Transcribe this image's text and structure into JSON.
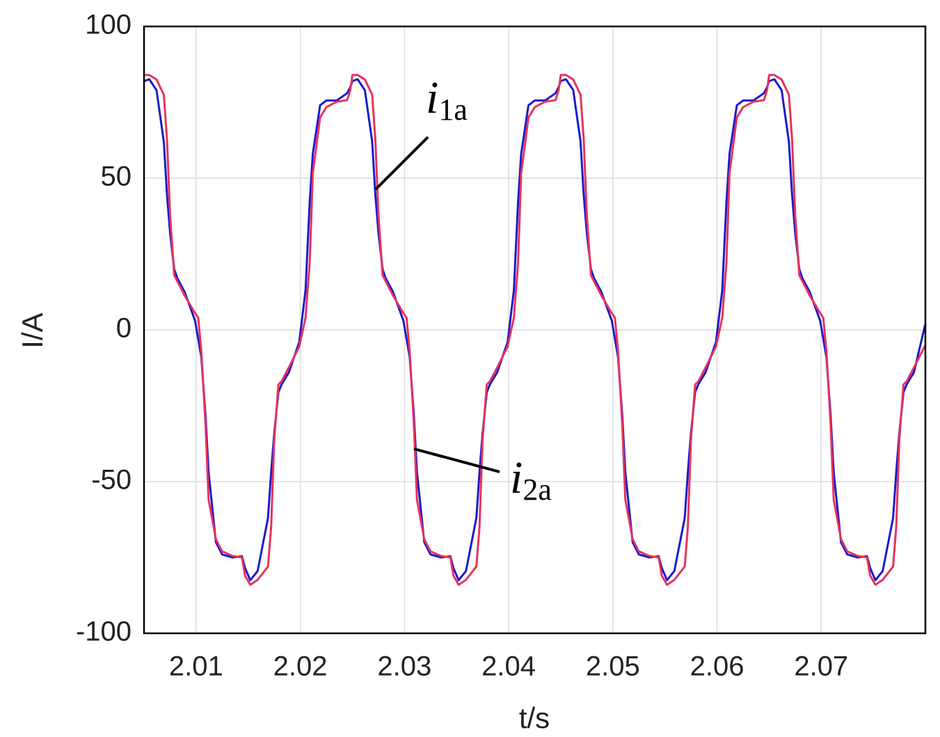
{
  "chart_data": {
    "type": "line",
    "x_label": "t/s",
    "y_label": "I/A",
    "xlim": [
      2.005,
      2.08
    ],
    "ylim": [
      -100,
      100
    ],
    "xticks": [
      2.01,
      2.02,
      2.03,
      2.04,
      2.05,
      2.06,
      2.07
    ],
    "yticks": [
      -100,
      -50,
      0,
      50,
      100
    ],
    "grid": true,
    "annotations": [
      {
        "symbol": "i",
        "subscript": "1a"
      },
      {
        "symbol": "i",
        "subscript": "2a"
      }
    ],
    "x": [
      2.005,
      2.0055,
      2.0062,
      2.0069,
      2.0072,
      2.0075,
      2.0079,
      2.0082,
      2.0089,
      2.0099,
      2.0102,
      2.0105,
      2.0109,
      2.0112,
      2.0119,
      2.0125,
      2.0135,
      2.0144,
      2.0147,
      2.0152,
      2.0159,
      2.0169,
      2.0172,
      2.0175,
      2.0179,
      2.0182,
      2.0189,
      2.0199,
      2.0205,
      2.0209,
      2.0212,
      2.0219,
      2.0225,
      2.0235,
      2.0245,
      2.0248,
      2.025,
      2.0255,
      2.0262,
      2.0269,
      2.0272,
      2.0275,
      2.0279,
      2.0282,
      2.0289,
      2.0299,
      2.0302,
      2.0305,
      2.0309,
      2.0312,
      2.0319,
      2.0325,
      2.0335,
      2.0344,
      2.0347,
      2.0352,
      2.0359,
      2.0369,
      2.0372,
      2.0375,
      2.0379,
      2.0382,
      2.0389,
      2.0399,
      2.0405,
      2.0409,
      2.0412,
      2.0419,
      2.0425,
      2.0435,
      2.0445,
      2.0448,
      2.045,
      2.0455,
      2.0462,
      2.0469,
      2.0472,
      2.0475,
      2.0479,
      2.0482,
      2.0489,
      2.0499,
      2.0502,
      2.0505,
      2.0509,
      2.0512,
      2.0519,
      2.0525,
      2.0535,
      2.0544,
      2.0547,
      2.0552,
      2.0559,
      2.0569,
      2.0572,
      2.0575,
      2.0579,
      2.0582,
      2.0589,
      2.0599,
      2.0605,
      2.0609,
      2.0612,
      2.0619,
      2.0625,
      2.0635,
      2.0645,
      2.0648,
      2.065,
      2.0655,
      2.0662,
      2.0669,
      2.0672,
      2.0675,
      2.0679,
      2.0682,
      2.0689,
      2.0699,
      2.0702,
      2.0705,
      2.0709,
      2.0712,
      2.0719,
      2.0725,
      2.0735,
      2.0744,
      2.0747,
      2.0752,
      2.0759,
      2.0769,
      2.0772,
      2.0775,
      2.0779,
      2.0782,
      2.0789,
      2.08
    ],
    "series": [
      {
        "color": "#1a1acc",
        "values": [
          82,
          82.6,
          79,
          62,
          44.7,
          32,
          20,
          17,
          12.5,
          3,
          -3,
          -9,
          -28,
          -47,
          -70,
          -74,
          -75,
          -74.6,
          -78.5,
          -82.5,
          -79.5,
          -62,
          -47,
          -34,
          -20.5,
          -18,
          -14,
          -4,
          13,
          42,
          58,
          74,
          75.6,
          75.6,
          78,
          80,
          82,
          82.6,
          79,
          62,
          44.7,
          32,
          20,
          17,
          12.5,
          3,
          -3,
          -9,
          -28,
          -47,
          -70,
          -74,
          -75,
          -74.6,
          -78.5,
          -82.5,
          -79.5,
          -62,
          -47,
          -34,
          -20.5,
          -18,
          -14,
          -4,
          13,
          42,
          58,
          74,
          75.6,
          75.6,
          78,
          80,
          82,
          82.6,
          79,
          62,
          44.7,
          32,
          20,
          17,
          12.5,
          3,
          -3,
          -9,
          -28,
          -47,
          -70,
          -74,
          -75,
          -74.6,
          -78.5,
          -82.5,
          -79.5,
          -62,
          -47,
          -34,
          -20.5,
          -18,
          -14,
          -4,
          13,
          42,
          58,
          74,
          75.6,
          75.6,
          78,
          80,
          82,
          82.6,
          79,
          62,
          44.7,
          32,
          20,
          17,
          12.5,
          3,
          -3,
          -9,
          -28,
          -47,
          -70,
          -74,
          -75,
          -74.6,
          -78.5,
          -82.5,
          -79.5,
          -62,
          -47,
          -34,
          -20.5,
          -18,
          -14,
          2
        ]
      },
      {
        "color": "#e8325a",
        "values": [
          84,
          84,
          82.5,
          77.5,
          63,
          38,
          18,
          16,
          11.3,
          5.5,
          4,
          -7,
          -31,
          -56,
          -69,
          -73,
          -74.5,
          -75,
          -81,
          -84,
          -82.4,
          -78,
          -65,
          -36,
          -18,
          -17,
          -12.4,
          -5.5,
          4,
          22,
          51.6,
          70,
          73.4,
          75.2,
          75.7,
          79,
          84,
          84,
          82.5,
          77.5,
          63,
          38,
          18,
          16,
          11.3,
          5.5,
          4,
          -7,
          -31,
          -56,
          -69,
          -73,
          -74.5,
          -75,
          -81,
          -84,
          -82.4,
          -78,
          -65,
          -36,
          -18,
          -17,
          -12.4,
          -5.5,
          4,
          22,
          51.6,
          70,
          73.4,
          75.2,
          75.7,
          79,
          84,
          84,
          82.5,
          77.5,
          63,
          38,
          18,
          16,
          11.3,
          5.5,
          4,
          -7,
          -31,
          -56,
          -69,
          -73,
          -74.5,
          -75,
          -81,
          -84,
          -82.4,
          -78,
          -65,
          -36,
          -18,
          -17,
          -12.4,
          -5.5,
          4,
          22,
          51.6,
          70,
          73.4,
          75.2,
          75.7,
          79,
          84,
          84,
          82.5,
          77.5,
          63,
          38,
          18,
          16,
          11.3,
          5.5,
          4,
          -7,
          -31,
          -56,
          -69,
          -73,
          -74.5,
          -75,
          -81,
          -84,
          -82.4,
          -78,
          -65,
          -36,
          -18,
          -17,
          -12.4,
          -5
        ]
      }
    ]
  }
}
